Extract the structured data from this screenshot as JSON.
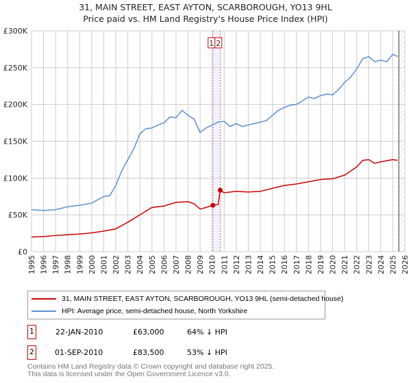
{
  "chart_data": {
    "type": "line",
    "title": "31, MAIN STREET, EAST AYTON, SCARBOROUGH, YO13 9HL",
    "subtitle": "Price paid vs. HM Land Registry's House Price Index (HPI)",
    "xlim": [
      1995,
      2026
    ],
    "ylim": [
      0,
      300000
    ],
    "x_ticks": [
      "1995",
      "1996",
      "1997",
      "1998",
      "1999",
      "2000",
      "2001",
      "2002",
      "2003",
      "2004",
      "2005",
      "2006",
      "2007",
      "2008",
      "2009",
      "2010",
      "2011",
      "2012",
      "2013",
      "2014",
      "2015",
      "2016",
      "2017",
      "2018",
      "2019",
      "2020",
      "2021",
      "2022",
      "2023",
      "2024",
      "2025",
      "2026"
    ],
    "y_ticks": [
      {
        "v": 0,
        "label": "£0"
      },
      {
        "v": 50000,
        "label": "£50K"
      },
      {
        "v": 100000,
        "label": "£100K"
      },
      {
        "v": 150000,
        "label": "£150K"
      },
      {
        "v": 200000,
        "label": "£200K"
      },
      {
        "v": 250000,
        "label": "£250K"
      },
      {
        "v": 300000,
        "label": "£300K"
      }
    ],
    "series": [
      {
        "name": "31, MAIN STREET, EAST AYTON, SCARBOROUGH, YO13 9HL (semi-detached house)",
        "color": "#cc0000",
        "x": [
          1995,
          1996,
          1997,
          1998,
          1999,
          2000,
          2001,
          2002,
          2003,
          2004,
          2005,
          2006,
          2007,
          2008,
          2008.5,
          2009,
          2009.5,
          2010.06,
          2010.5,
          2010.67,
          2011,
          2012,
          2013,
          2014,
          2015,
          2016,
          2017,
          2018,
          2019,
          2020,
          2021,
          2022,
          2022.5,
          2023,
          2023.5,
          2024,
          2025,
          2025.4
        ],
        "y": [
          20000,
          20500,
          22000,
          23000,
          24000,
          25500,
          28000,
          31000,
          40000,
          50000,
          60000,
          62000,
          67000,
          68000,
          65000,
          58000,
          60000,
          63000,
          64000,
          83500,
          80000,
          82000,
          81000,
          82000,
          86000,
          90000,
          92000,
          95000,
          98000,
          99000,
          104000,
          115000,
          124000,
          125000,
          120000,
          122000,
          125000,
          124000
        ]
      },
      {
        "name": "HPI: Average price, semi-detached house, North Yorkshire",
        "color": "#5b8fd4",
        "x": [
          1995,
          1996,
          1997,
          1998,
          1999,
          2000,
          2001,
          2001.5,
          2002,
          2002.5,
          2003,
          2003.5,
          2004,
          2004.5,
          2005,
          2005.5,
          2006,
          2006.5,
          2007,
          2007.5,
          2008,
          2008.5,
          2009,
          2009.5,
          2010,
          2010.5,
          2011,
          2011.5,
          2012,
          2012.5,
          2013,
          2013.5,
          2014,
          2014.5,
          2015,
          2015.5,
          2016,
          2016.5,
          2017,
          2017.5,
          2018,
          2018.5,
          2019,
          2019.5,
          2020,
          2020.5,
          2021,
          2021.5,
          2022,
          2022.5,
          2023,
          2023.5,
          2024,
          2024.5,
          2025,
          2025.4
        ],
        "y": [
          57000,
          56000,
          57000,
          61000,
          63000,
          66000,
          75000,
          76000,
          90000,
          110000,
          125000,
          140000,
          160000,
          167000,
          168000,
          172000,
          175000,
          183000,
          182000,
          192000,
          185000,
          180000,
          162000,
          168000,
          172000,
          176000,
          177000,
          170000,
          174000,
          170000,
          172000,
          174000,
          176000,
          178000,
          185000,
          192000,
          196000,
          199000,
          200000,
          205000,
          210000,
          208000,
          212000,
          214000,
          213000,
          220000,
          230000,
          237000,
          248000,
          262000,
          265000,
          258000,
          260000,
          258000,
          268000,
          265000
        ]
      }
    ],
    "sales": [
      {
        "label": "1",
        "x": 2010.06,
        "y": 63000
      },
      {
        "label": "2",
        "x": 2010.67,
        "y": 83500
      }
    ],
    "data_end_x": 2025.5
  },
  "legend": {
    "red": "31, MAIN STREET, EAST AYTON, SCARBOROUGH, YO13 9HL (semi-detached house)",
    "blue": "HPI: Average price, semi-detached house, North Yorkshire"
  },
  "transactions": [
    {
      "num": "1",
      "date": "22-JAN-2010",
      "price": "£63,000",
      "hpi": "64% ↓ HPI"
    },
    {
      "num": "2",
      "date": "01-SEP-2010",
      "price": "£83,500",
      "hpi": "53% ↓ HPI"
    }
  ],
  "footer": {
    "line1": "Contains HM Land Registry data © Crown copyright and database right 2025.",
    "line2": "This data is licensed under the Open Government Licence v3.0."
  }
}
